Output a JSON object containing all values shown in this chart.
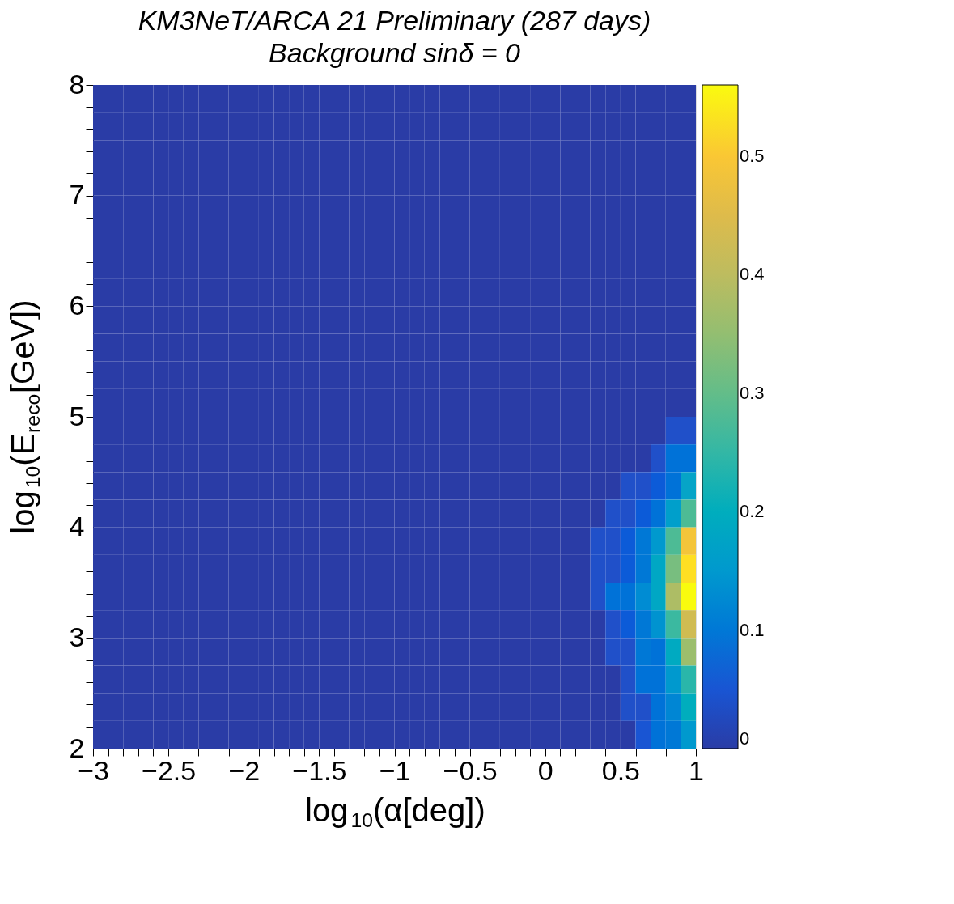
{
  "chart_data": {
    "type": "heatmap",
    "title": "KM3NeT/ARCA 21 Preliminary (287 days)",
    "subtitle": "Background sinδ = 0",
    "xlabel": "log$_{10}$(α[deg])",
    "ylabel": "log$_{10}$(E$_{reco}$[GeV])",
    "x": [
      -2.95,
      -2.85,
      -2.75,
      -2.65,
      -2.55,
      -2.45,
      -2.35,
      -2.25,
      -2.15,
      -2.05,
      -1.95,
      -1.85,
      -1.75,
      -1.65,
      -1.55,
      -1.45,
      -1.35,
      -1.25,
      -1.15,
      -1.05,
      -0.95,
      -0.85,
      -0.75,
      -0.65,
      -0.55,
      -0.45,
      -0.35,
      -0.25,
      -0.15,
      -0.05,
      0.05,
      0.15,
      0.25,
      0.35,
      0.45,
      0.55,
      0.65,
      0.75,
      0.85,
      0.95
    ],
    "y": [
      7.875,
      7.625,
      7.375,
      7.125,
      6.875,
      6.625,
      6.375,
      6.125,
      5.875,
      5.625,
      5.375,
      5.125,
      4.875,
      4.625,
      4.375,
      4.125,
      3.875,
      3.625,
      3.375,
      3.125,
      2.875,
      2.625,
      2.375,
      2.125
    ],
    "xlim": [
      -3,
      1
    ],
    "ylim": [
      2,
      8
    ],
    "xticks": [
      -3,
      {
        "value": -2.9,
        "label": null
      },
      {
        "value": -2.8,
        "label": null
      },
      {
        "value": -2.7,
        "label": null
      },
      {
        "value": -2.6,
        "label": null
      },
      -2.5,
      {
        "value": -2.4,
        "label": null
      },
      {
        "value": -2.3,
        "label": null
      },
      {
        "value": -2.2,
        "label": null
      },
      {
        "value": -2.1,
        "label": null
      },
      -2,
      {
        "value": -1.9,
        "label": null
      },
      {
        "value": -1.8,
        "label": null
      },
      {
        "value": -1.7,
        "label": null
      },
      {
        "value": -1.6,
        "label": null
      },
      -1.5,
      {
        "value": -1.4,
        "label": null
      },
      {
        "value": -1.3,
        "label": null
      },
      {
        "value": -1.2,
        "label": null
      },
      {
        "value": -1.1,
        "label": null
      },
      -1,
      {
        "value": -0.9,
        "label": null
      },
      {
        "value": -0.8,
        "label": null
      },
      {
        "value": -0.7,
        "label": null
      },
      {
        "value": -0.6,
        "label": null
      },
      -0.5,
      {
        "value": -0.4,
        "label": null
      },
      {
        "value": -0.3,
        "label": null
      },
      {
        "value": -0.2,
        "label": null
      },
      {
        "value": -0.1,
        "label": null
      },
      0,
      {
        "value": 0.1,
        "label": null
      },
      {
        "value": 0.2,
        "label": null
      },
      {
        "value": 0.3,
        "label": null
      },
      {
        "value": 0.4,
        "label": null
      },
      0.5,
      {
        "value": 0.6,
        "label": null
      },
      {
        "value": 0.7,
        "label": null
      },
      {
        "value": 0.8,
        "label": null
      },
      {
        "value": 0.9,
        "label": null
      },
      1
    ],
    "yticks": [
      2,
      {
        "value": 2.2,
        "label": null
      },
      {
        "value": 2.4,
        "label": null
      },
      {
        "value": 2.6,
        "label": null
      },
      {
        "value": 2.8,
        "label": null
      },
      3,
      {
        "value": 3.2,
        "label": null
      },
      {
        "value": 3.4,
        "label": null
      },
      {
        "value": 3.6,
        "label": null
      },
      {
        "value": 3.8,
        "label": null
      },
      4,
      {
        "value": 4.2,
        "label": null
      },
      {
        "value": 4.4,
        "label": null
      },
      {
        "value": 4.6,
        "label": null
      },
      {
        "value": 4.8,
        "label": null
      },
      5,
      {
        "value": 5.2,
        "label": null
      },
      {
        "value": 5.4,
        "label": null
      },
      {
        "value": 5.6,
        "label": null
      },
      {
        "value": 5.8,
        "label": null
      },
      6,
      {
        "value": 6.2,
        "label": null
      },
      {
        "value": 6.4,
        "label": null
      },
      {
        "value": 6.6,
        "label": null
      },
      {
        "value": 6.8,
        "label": null
      },
      7,
      {
        "value": 7.2,
        "label": null
      },
      {
        "value": 7.4,
        "label": null
      },
      {
        "value": 7.6,
        "label": null
      },
      {
        "value": 7.8,
        "label": null
      },
      8
    ],
    "clim": [
      0,
      0.56
    ],
    "cticks": [
      0,
      0.1,
      0.2,
      0.3,
      0.4,
      0.5
    ],
    "cells": [
      [
        0,
        0,
        0,
        0,
        0,
        0,
        0,
        0,
        0,
        0,
        0,
        0,
        0,
        0,
        0,
        0,
        0,
        0,
        0,
        0,
        0,
        0,
        0,
        0,
        0,
        0,
        0,
        0,
        0,
        0,
        0,
        0,
        0,
        0,
        0,
        0,
        0,
        0,
        0,
        0
      ],
      [
        0,
        0,
        0,
        0,
        0,
        0,
        0,
        0,
        0,
        0,
        0,
        0,
        0,
        0,
        0,
        0,
        0,
        0,
        0,
        0,
        0,
        0,
        0,
        0,
        0,
        0,
        0,
        0,
        0,
        0,
        0,
        0,
        0,
        0,
        0,
        0,
        0,
        0,
        0,
        0
      ],
      [
        0,
        0,
        0,
        0,
        0,
        0,
        0,
        0,
        0,
        0,
        0,
        0,
        0,
        0,
        0,
        0,
        0,
        0,
        0,
        0,
        0,
        0,
        0,
        0,
        0,
        0,
        0,
        0,
        0,
        0,
        0,
        0,
        0,
        0,
        0,
        0,
        0,
        0,
        0,
        0
      ],
      [
        0,
        0,
        0,
        0,
        0,
        0,
        0,
        0,
        0,
        0,
        0,
        0,
        0,
        0,
        0,
        0,
        0,
        0,
        0,
        0,
        0,
        0,
        0,
        0,
        0,
        0,
        0,
        0,
        0,
        0,
        0,
        0,
        0,
        0,
        0,
        0,
        0,
        0,
        0,
        0
      ],
      [
        0,
        0,
        0,
        0,
        0,
        0,
        0,
        0,
        0,
        0,
        0,
        0,
        0,
        0,
        0,
        0,
        0,
        0,
        0,
        0,
        0,
        0,
        0,
        0,
        0,
        0,
        0,
        0,
        0,
        0,
        0,
        0,
        0,
        0,
        0,
        0,
        0,
        0,
        0,
        0
      ],
      [
        0,
        0,
        0,
        0,
        0,
        0,
        0,
        0,
        0,
        0,
        0,
        0,
        0,
        0,
        0,
        0,
        0,
        0,
        0,
        0,
        0,
        0,
        0,
        0,
        0,
        0,
        0,
        0,
        0,
        0,
        0,
        0,
        0,
        0,
        0,
        0,
        0,
        0,
        0,
        0
      ],
      [
        0,
        0,
        0,
        0,
        0,
        0,
        0,
        0,
        0,
        0,
        0,
        0,
        0,
        0,
        0,
        0,
        0,
        0,
        0,
        0,
        0,
        0,
        0,
        0,
        0,
        0,
        0,
        0,
        0,
        0,
        0,
        0,
        0,
        0,
        0,
        0,
        0,
        0,
        0,
        0
      ],
      [
        0,
        0,
        0,
        0,
        0,
        0,
        0,
        0,
        0,
        0,
        0,
        0,
        0,
        0,
        0,
        0,
        0,
        0,
        0,
        0,
        0,
        0,
        0,
        0,
        0,
        0,
        0,
        0,
        0,
        0,
        0,
        0,
        0,
        0,
        0,
        0,
        0,
        0,
        0,
        0
      ],
      [
        0,
        0,
        0,
        0,
        0,
        0,
        0,
        0,
        0,
        0,
        0,
        0,
        0,
        0,
        0,
        0,
        0,
        0,
        0,
        0,
        0,
        0,
        0,
        0,
        0,
        0,
        0,
        0,
        0,
        0,
        0,
        0,
        0,
        0,
        0,
        0,
        0,
        0,
        0,
        0
      ],
      [
        0,
        0,
        0,
        0,
        0,
        0,
        0,
        0,
        0,
        0,
        0,
        0,
        0,
        0,
        0,
        0,
        0,
        0,
        0,
        0,
        0,
        0,
        0,
        0,
        0,
        0,
        0,
        0,
        0,
        0,
        0,
        0,
        0,
        0,
        0,
        0,
        0,
        0,
        0,
        0
      ],
      [
        0,
        0,
        0,
        0,
        0,
        0,
        0,
        0,
        0,
        0,
        0,
        0,
        0,
        0,
        0,
        0,
        0,
        0,
        0,
        0,
        0,
        0,
        0,
        0,
        0,
        0,
        0,
        0,
        0,
        0,
        0,
        0,
        0,
        0,
        0,
        0,
        0,
        0,
        0,
        0
      ],
      [
        0,
        0,
        0,
        0,
        0,
        0,
        0,
        0,
        0,
        0,
        0,
        0,
        0,
        0,
        0,
        0,
        0,
        0,
        0,
        0,
        0,
        0,
        0,
        0,
        0,
        0,
        0,
        0,
        0,
        0,
        0,
        0,
        0,
        0,
        0,
        0,
        0,
        0,
        0,
        0
      ],
      [
        0,
        0,
        0,
        0,
        0,
        0,
        0,
        0,
        0,
        0,
        0,
        0,
        0,
        0,
        0,
        0,
        0,
        0,
        0,
        0,
        0,
        0,
        0,
        0,
        0,
        0,
        0,
        0,
        0,
        0,
        0,
        0,
        0,
        0,
        0,
        0,
        0,
        0,
        0.04,
        0.04
      ],
      [
        0,
        0,
        0,
        0,
        0,
        0,
        0,
        0,
        0,
        0,
        0,
        0,
        0,
        0,
        0,
        0,
        0,
        0,
        0,
        0,
        0,
        0,
        0,
        0,
        0,
        0,
        0,
        0,
        0,
        0,
        0,
        0,
        0,
        0,
        0,
        0,
        0,
        0.04,
        0.09,
        0.09
      ],
      [
        0,
        0,
        0,
        0,
        0,
        0,
        0,
        0,
        0,
        0,
        0,
        0,
        0,
        0,
        0,
        0,
        0,
        0,
        0,
        0,
        0,
        0,
        0,
        0,
        0,
        0,
        0,
        0,
        0,
        0,
        0,
        0,
        0,
        0,
        0,
        0.04,
        0.04,
        0.06,
        0.09,
        0.17
      ],
      [
        0,
        0,
        0,
        0,
        0,
        0,
        0,
        0,
        0,
        0,
        0,
        0,
        0,
        0,
        0,
        0,
        0,
        0,
        0,
        0,
        0,
        0,
        0,
        0,
        0,
        0,
        0,
        0,
        0,
        0,
        0,
        0,
        0,
        0,
        0.04,
        0.04,
        0.06,
        0.09,
        0.16,
        0.28
      ],
      [
        0,
        0,
        0,
        0,
        0,
        0,
        0,
        0,
        0,
        0,
        0,
        0,
        0,
        0,
        0,
        0,
        0,
        0,
        0,
        0,
        0,
        0,
        0,
        0,
        0,
        0,
        0,
        0,
        0,
        0,
        0,
        0,
        0,
        0.04,
        0.04,
        0.06,
        0.1,
        0.15,
        0.28,
        0.49
      ],
      [
        0,
        0,
        0,
        0,
        0,
        0,
        0,
        0,
        0,
        0,
        0,
        0,
        0,
        0,
        0,
        0,
        0,
        0,
        0,
        0,
        0,
        0,
        0,
        0,
        0,
        0,
        0,
        0,
        0,
        0,
        0,
        0,
        0,
        0.04,
        0.04,
        0.06,
        0.1,
        0.18,
        0.32,
        0.53
      ],
      [
        0,
        0,
        0,
        0,
        0,
        0,
        0,
        0,
        0,
        0,
        0,
        0,
        0,
        0,
        0,
        0,
        0,
        0,
        0,
        0,
        0,
        0,
        0,
        0,
        0,
        0,
        0,
        0,
        0,
        0,
        0,
        0,
        0,
        0.04,
        0.09,
        0.09,
        0.13,
        0.18,
        0.38,
        0.56
      ],
      [
        0,
        0,
        0,
        0,
        0,
        0,
        0,
        0,
        0,
        0,
        0,
        0,
        0,
        0,
        0,
        0,
        0,
        0,
        0,
        0,
        0,
        0,
        0,
        0,
        0,
        0,
        0,
        0,
        0,
        0,
        0,
        0,
        0,
        0,
        0.04,
        0.06,
        0.1,
        0.14,
        0.26,
        0.43
      ],
      [
        0,
        0,
        0,
        0,
        0,
        0,
        0,
        0,
        0,
        0,
        0,
        0,
        0,
        0,
        0,
        0,
        0,
        0,
        0,
        0,
        0,
        0,
        0,
        0,
        0,
        0,
        0,
        0,
        0,
        0,
        0,
        0,
        0,
        0,
        0.04,
        0.04,
        0.1,
        0.09,
        0.19,
        0.36
      ],
      [
        0,
        0,
        0,
        0,
        0,
        0,
        0,
        0,
        0,
        0,
        0,
        0,
        0,
        0,
        0,
        0,
        0,
        0,
        0,
        0,
        0,
        0,
        0,
        0,
        0,
        0,
        0,
        0,
        0,
        0,
        0,
        0,
        0,
        0,
        0,
        0.04,
        0.09,
        0.09,
        0.15,
        0.24
      ],
      [
        0,
        0,
        0,
        0,
        0,
        0,
        0,
        0,
        0,
        0,
        0,
        0,
        0,
        0,
        0,
        0,
        0,
        0,
        0,
        0,
        0,
        0,
        0,
        0,
        0,
        0,
        0,
        0,
        0,
        0,
        0,
        0,
        0,
        0,
        0,
        0.04,
        0.04,
        0.09,
        0.12,
        0.2
      ],
      [
        0,
        0,
        0,
        0,
        0,
        0,
        0,
        0,
        0,
        0,
        0,
        0,
        0,
        0,
        0,
        0,
        0,
        0,
        0,
        0,
        0,
        0,
        0,
        0,
        0,
        0,
        0,
        0,
        0,
        0,
        0,
        0,
        0,
        0,
        0,
        0,
        0.05,
        0.09,
        0.1,
        0.15
      ]
    ]
  }
}
